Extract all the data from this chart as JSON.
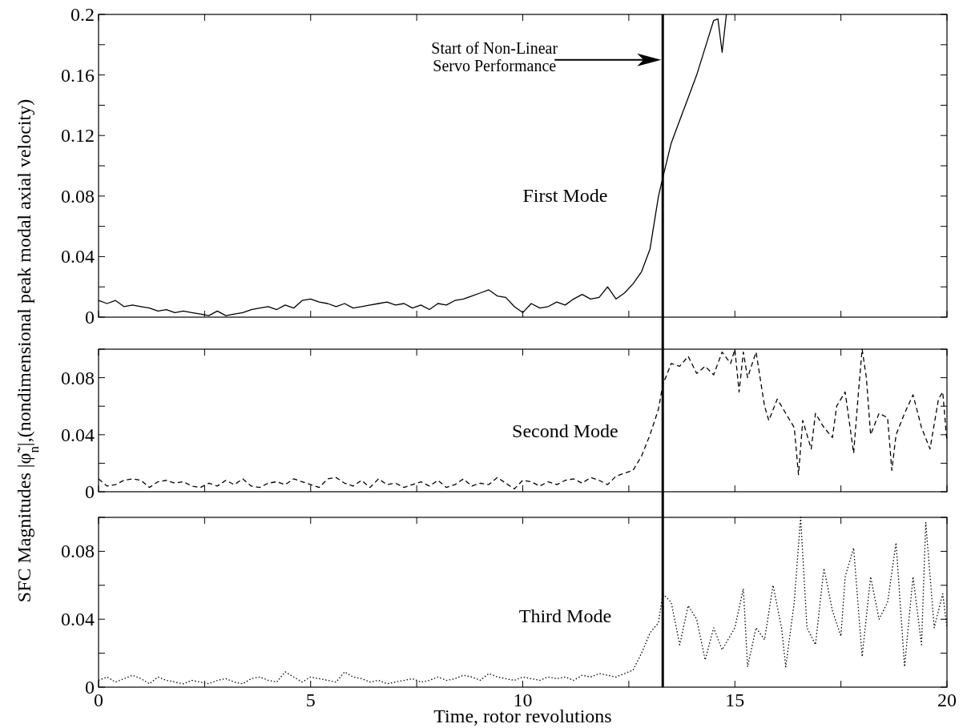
{
  "chart_data": [
    {
      "type": "line",
      "xlim": [
        0,
        20
      ],
      "xticks": [
        0,
        {
          "value": 2.5,
          "label": null
        },
        5,
        {
          "value": 7.5,
          "label": null
        },
        10,
        {
          "value": 12.5,
          "label": null
        },
        15,
        {
          "value": 17.5,
          "label": null
        },
        20
      ],
      "ylim": [
        0,
        0.2
      ],
      "yticks": [
        0,
        {
          "value": 0.02,
          "label": null
        },
        0.04,
        {
          "value": 0.06,
          "label": null
        },
        0.08,
        {
          "value": 0.1,
          "label": null
        },
        0.12,
        {
          "value": 0.14,
          "label": null
        },
        0.16,
        {
          "value": 0.18,
          "label": null
        },
        0.2
      ],
      "tick_labels": "y",
      "grid": false,
      "ref_lines": [
        {
          "axis": "x",
          "value": 13.3,
          "color": "#000000"
        }
      ],
      "annotations": [
        "Start of Non-Linear\nServo Performance"
      ],
      "series": [
        {
          "name": "First Mode",
          "color": "#000000",
          "line_style": "solid",
          "x": [
            0,
            0.2,
            0.4,
            0.6,
            0.8,
            1,
            1.2,
            1.4,
            1.6,
            1.8,
            2,
            2.2,
            2.4,
            2.6,
            2.8,
            3,
            3.2,
            3.4,
            3.6,
            3.8,
            4,
            4.2,
            4.4,
            4.6,
            4.8,
            5,
            5.2,
            5.4,
            5.6,
            5.8,
            6,
            6.2,
            6.4,
            6.6,
            6.8,
            7,
            7.2,
            7.4,
            7.6,
            7.8,
            8,
            8.2,
            8.4,
            8.6,
            8.8,
            9,
            9.2,
            9.4,
            9.6,
            9.8,
            10,
            10.2,
            10.4,
            10.6,
            10.8,
            11,
            11.2,
            11.4,
            11.6,
            11.8,
            12,
            12.2,
            12.4,
            12.6,
            12.8,
            13,
            13.2,
            13.3,
            13.5,
            13.7,
            13.9,
            14.1,
            14.3,
            14.5,
            14.6,
            14.7,
            14.8
          ],
          "values": [
            0.011,
            0.009,
            0.011,
            0.007,
            0.008,
            0.007,
            0.006,
            0.004,
            0.005,
            0.003,
            0.004,
            0.003,
            0.002,
            0.001,
            0.004,
            0.001,
            0.002,
            0.003,
            0.005,
            0.006,
            0.007,
            0.005,
            0.008,
            0.006,
            0.011,
            0.012,
            0.01,
            0.009,
            0.007,
            0.009,
            0.006,
            0.007,
            0.008,
            0.009,
            0.01,
            0.008,
            0.009,
            0.006,
            0.008,
            0.005,
            0.009,
            0.008,
            0.011,
            0.012,
            0.014,
            0.016,
            0.018,
            0.014,
            0.013,
            0.007,
            0.003,
            0.009,
            0.006,
            0.007,
            0.01,
            0.008,
            0.012,
            0.015,
            0.012,
            0.013,
            0.02,
            0.012,
            0.016,
            0.022,
            0.03,
            0.045,
            0.08,
            0.092,
            0.115,
            0.13,
            0.145,
            0.16,
            0.178,
            0.196,
            0.197,
            0.175,
            0.2
          ]
        }
      ]
    },
    {
      "type": "line",
      "xlim": [
        0,
        20
      ],
      "xticks": [
        0,
        {
          "value": 2.5,
          "label": null
        },
        5,
        {
          "value": 7.5,
          "label": null
        },
        10,
        {
          "value": 12.5,
          "label": null
        },
        15,
        {
          "value": 17.5,
          "label": null
        },
        20
      ],
      "ylim": [
        0,
        0.1
      ],
      "yticks": [
        0,
        {
          "value": 0.02,
          "label": null
        },
        0.04,
        {
          "value": 0.06,
          "label": null
        },
        0.08,
        {
          "value": 0.1,
          "label": null
        }
      ],
      "tick_labels": "y",
      "grid": false,
      "ylabel": "SFC Magnitudes |φ̃$_{n}$|,(nondimensional peak modal axial velocity)",
      "ref_lines": [
        {
          "axis": "x",
          "value": 13.3,
          "color": "#000000"
        }
      ],
      "series": [
        {
          "name": "Second Mode",
          "color": "#000000",
          "line_style": "dashed",
          "x": [
            0,
            0.2,
            0.4,
            0.6,
            0.8,
            1,
            1.2,
            1.4,
            1.6,
            1.8,
            2,
            2.2,
            2.4,
            2.6,
            2.8,
            3,
            3.2,
            3.4,
            3.6,
            3.8,
            4,
            4.2,
            4.4,
            4.6,
            4.8,
            5,
            5.2,
            5.4,
            5.6,
            5.8,
            6,
            6.2,
            6.4,
            6.6,
            6.8,
            7,
            7.2,
            7.4,
            7.6,
            7.8,
            8,
            8.2,
            8.4,
            8.6,
            8.8,
            9,
            9.2,
            9.4,
            9.6,
            9.8,
            10,
            10.2,
            10.4,
            10.6,
            10.8,
            11,
            11.2,
            11.4,
            11.6,
            11.8,
            12,
            12.2,
            12.4,
            12.6,
            12.8,
            13,
            13.2,
            13.3,
            13.5,
            13.7,
            13.9,
            14.1,
            14.3,
            14.5,
            14.7,
            14.9,
            15,
            15.1,
            15.2,
            15.3,
            15.5,
            15.7,
            15.8,
            16,
            16.2,
            16.4,
            16.5,
            16.6,
            16.8,
            16.9,
            17.1,
            17.3,
            17.4,
            17.6,
            17.8,
            17.9,
            18,
            18.1,
            18.2,
            18.4,
            18.6,
            18.7,
            18.8,
            19,
            19.2,
            19.4,
            19.6,
            19.8,
            19.9,
            20
          ],
          "values": [
            0.009,
            0.004,
            0.005,
            0.008,
            0.009,
            0.008,
            0.003,
            0.007,
            0.008,
            0.006,
            0.007,
            0.004,
            0.003,
            0.006,
            0.004,
            0.008,
            0.005,
            0.009,
            0.004,
            0.003,
            0.006,
            0.007,
            0.005,
            0.009,
            0.007,
            0.005,
            0.003,
            0.009,
            0.01,
            0.006,
            0.004,
            0.008,
            0.003,
            0.009,
            0.005,
            0.006,
            0.003,
            0.005,
            0.007,
            0.004,
            0.008,
            0.003,
            0.005,
            0.009,
            0.004,
            0.006,
            0.005,
            0.01,
            0.006,
            0.002,
            0.008,
            0.007,
            0.004,
            0.007,
            0.005,
            0.008,
            0.009,
            0.006,
            0.01,
            0.008,
            0.005,
            0.011,
            0.013,
            0.015,
            0.025,
            0.04,
            0.058,
            0.075,
            0.09,
            0.088,
            0.095,
            0.083,
            0.088,
            0.082,
            0.098,
            0.09,
            0.1,
            0.07,
            0.098,
            0.08,
            0.098,
            0.06,
            0.05,
            0.065,
            0.055,
            0.045,
            0.012,
            0.05,
            0.03,
            0.055,
            0.045,
            0.038,
            0.06,
            0.07,
            0.027,
            0.065,
            0.1,
            0.08,
            0.04,
            0.055,
            0.052,
            0.015,
            0.04,
            0.055,
            0.068,
            0.045,
            0.03,
            0.065,
            0.07,
            0.035
          ]
        }
      ]
    },
    {
      "type": "line",
      "xlim": [
        0,
        20
      ],
      "xticks": [
        0,
        {
          "value": 2.5,
          "label": null
        },
        5,
        {
          "value": 7.5,
          "label": null
        },
        10,
        {
          "value": 12.5,
          "label": null
        },
        15,
        {
          "value": 17.5,
          "label": null
        },
        20
      ],
      "ylim": [
        0,
        0.1
      ],
      "yticks": [
        0,
        {
          "value": 0.02,
          "label": null
        },
        0.04,
        {
          "value": 0.06,
          "label": null
        },
        0.08,
        {
          "value": 0.1,
          "label": null
        }
      ],
      "grid": false,
      "xlabel": "Time, rotor revolutions",
      "ref_lines": [
        {
          "axis": "x",
          "value": 13.3,
          "color": "#000000"
        }
      ],
      "series": [
        {
          "name": "Third Mode",
          "color": "#000000",
          "line_style": "dotted",
          "x": [
            0,
            0.2,
            0.4,
            0.6,
            0.8,
            1,
            1.2,
            1.4,
            1.6,
            1.8,
            2,
            2.2,
            2.4,
            2.6,
            2.8,
            3,
            3.2,
            3.4,
            3.6,
            3.8,
            4,
            4.2,
            4.4,
            4.6,
            4.8,
            5,
            5.2,
            5.4,
            5.6,
            5.8,
            6,
            6.2,
            6.4,
            6.6,
            6.8,
            7,
            7.2,
            7.4,
            7.6,
            7.8,
            8,
            8.2,
            8.4,
            8.6,
            8.8,
            9,
            9.2,
            9.4,
            9.6,
            9.8,
            10,
            10.2,
            10.4,
            10.6,
            10.8,
            11,
            11.2,
            11.4,
            11.6,
            11.8,
            12,
            12.2,
            12.4,
            12.6,
            12.8,
            13,
            13.2,
            13.3,
            13.5,
            13.7,
            13.9,
            14.1,
            14.3,
            14.5,
            14.7,
            15,
            15.2,
            15.3,
            15.5,
            15.7,
            15.9,
            16.1,
            16.2,
            16.4,
            16.55,
            16.7,
            16.9,
            17.1,
            17.3,
            17.5,
            17.6,
            17.8,
            18,
            18.2,
            18.4,
            18.6,
            18.8,
            19,
            19.2,
            19.4,
            19.5,
            19.7,
            19.9,
            20
          ],
          "values": [
            0.004,
            0.006,
            0.003,
            0.005,
            0.007,
            0.005,
            0.002,
            0.006,
            0.004,
            0.003,
            0.002,
            0.004,
            0.003,
            0.002,
            0.004,
            0.005,
            0.003,
            0.002,
            0.005,
            0.006,
            0.004,
            0.003,
            0.009,
            0.006,
            0.003,
            0.006,
            0.005,
            0.004,
            0.003,
            0.009,
            0.006,
            0.005,
            0.003,
            0.004,
            0.002,
            0.003,
            0.004,
            0.005,
            0.003,
            0.004,
            0.006,
            0.004,
            0.005,
            0.007,
            0.006,
            0.004,
            0.008,
            0.006,
            0.005,
            0.004,
            0.006,
            0.005,
            0.004,
            0.006,
            0.005,
            0.006,
            0.004,
            0.007,
            0.006,
            0.008,
            0.007,
            0.006,
            0.008,
            0.01,
            0.02,
            0.032,
            0.038,
            0.055,
            0.05,
            0.025,
            0.048,
            0.04,
            0.016,
            0.035,
            0.022,
            0.035,
            0.058,
            0.012,
            0.035,
            0.028,
            0.06,
            0.035,
            0.012,
            0.05,
            0.1,
            0.035,
            0.025,
            0.07,
            0.045,
            0.03,
            0.065,
            0.082,
            0.018,
            0.065,
            0.04,
            0.05,
            0.085,
            0.012,
            0.065,
            0.025,
            0.097,
            0.035,
            0.055,
            0.035
          ]
        }
      ]
    }
  ]
}
